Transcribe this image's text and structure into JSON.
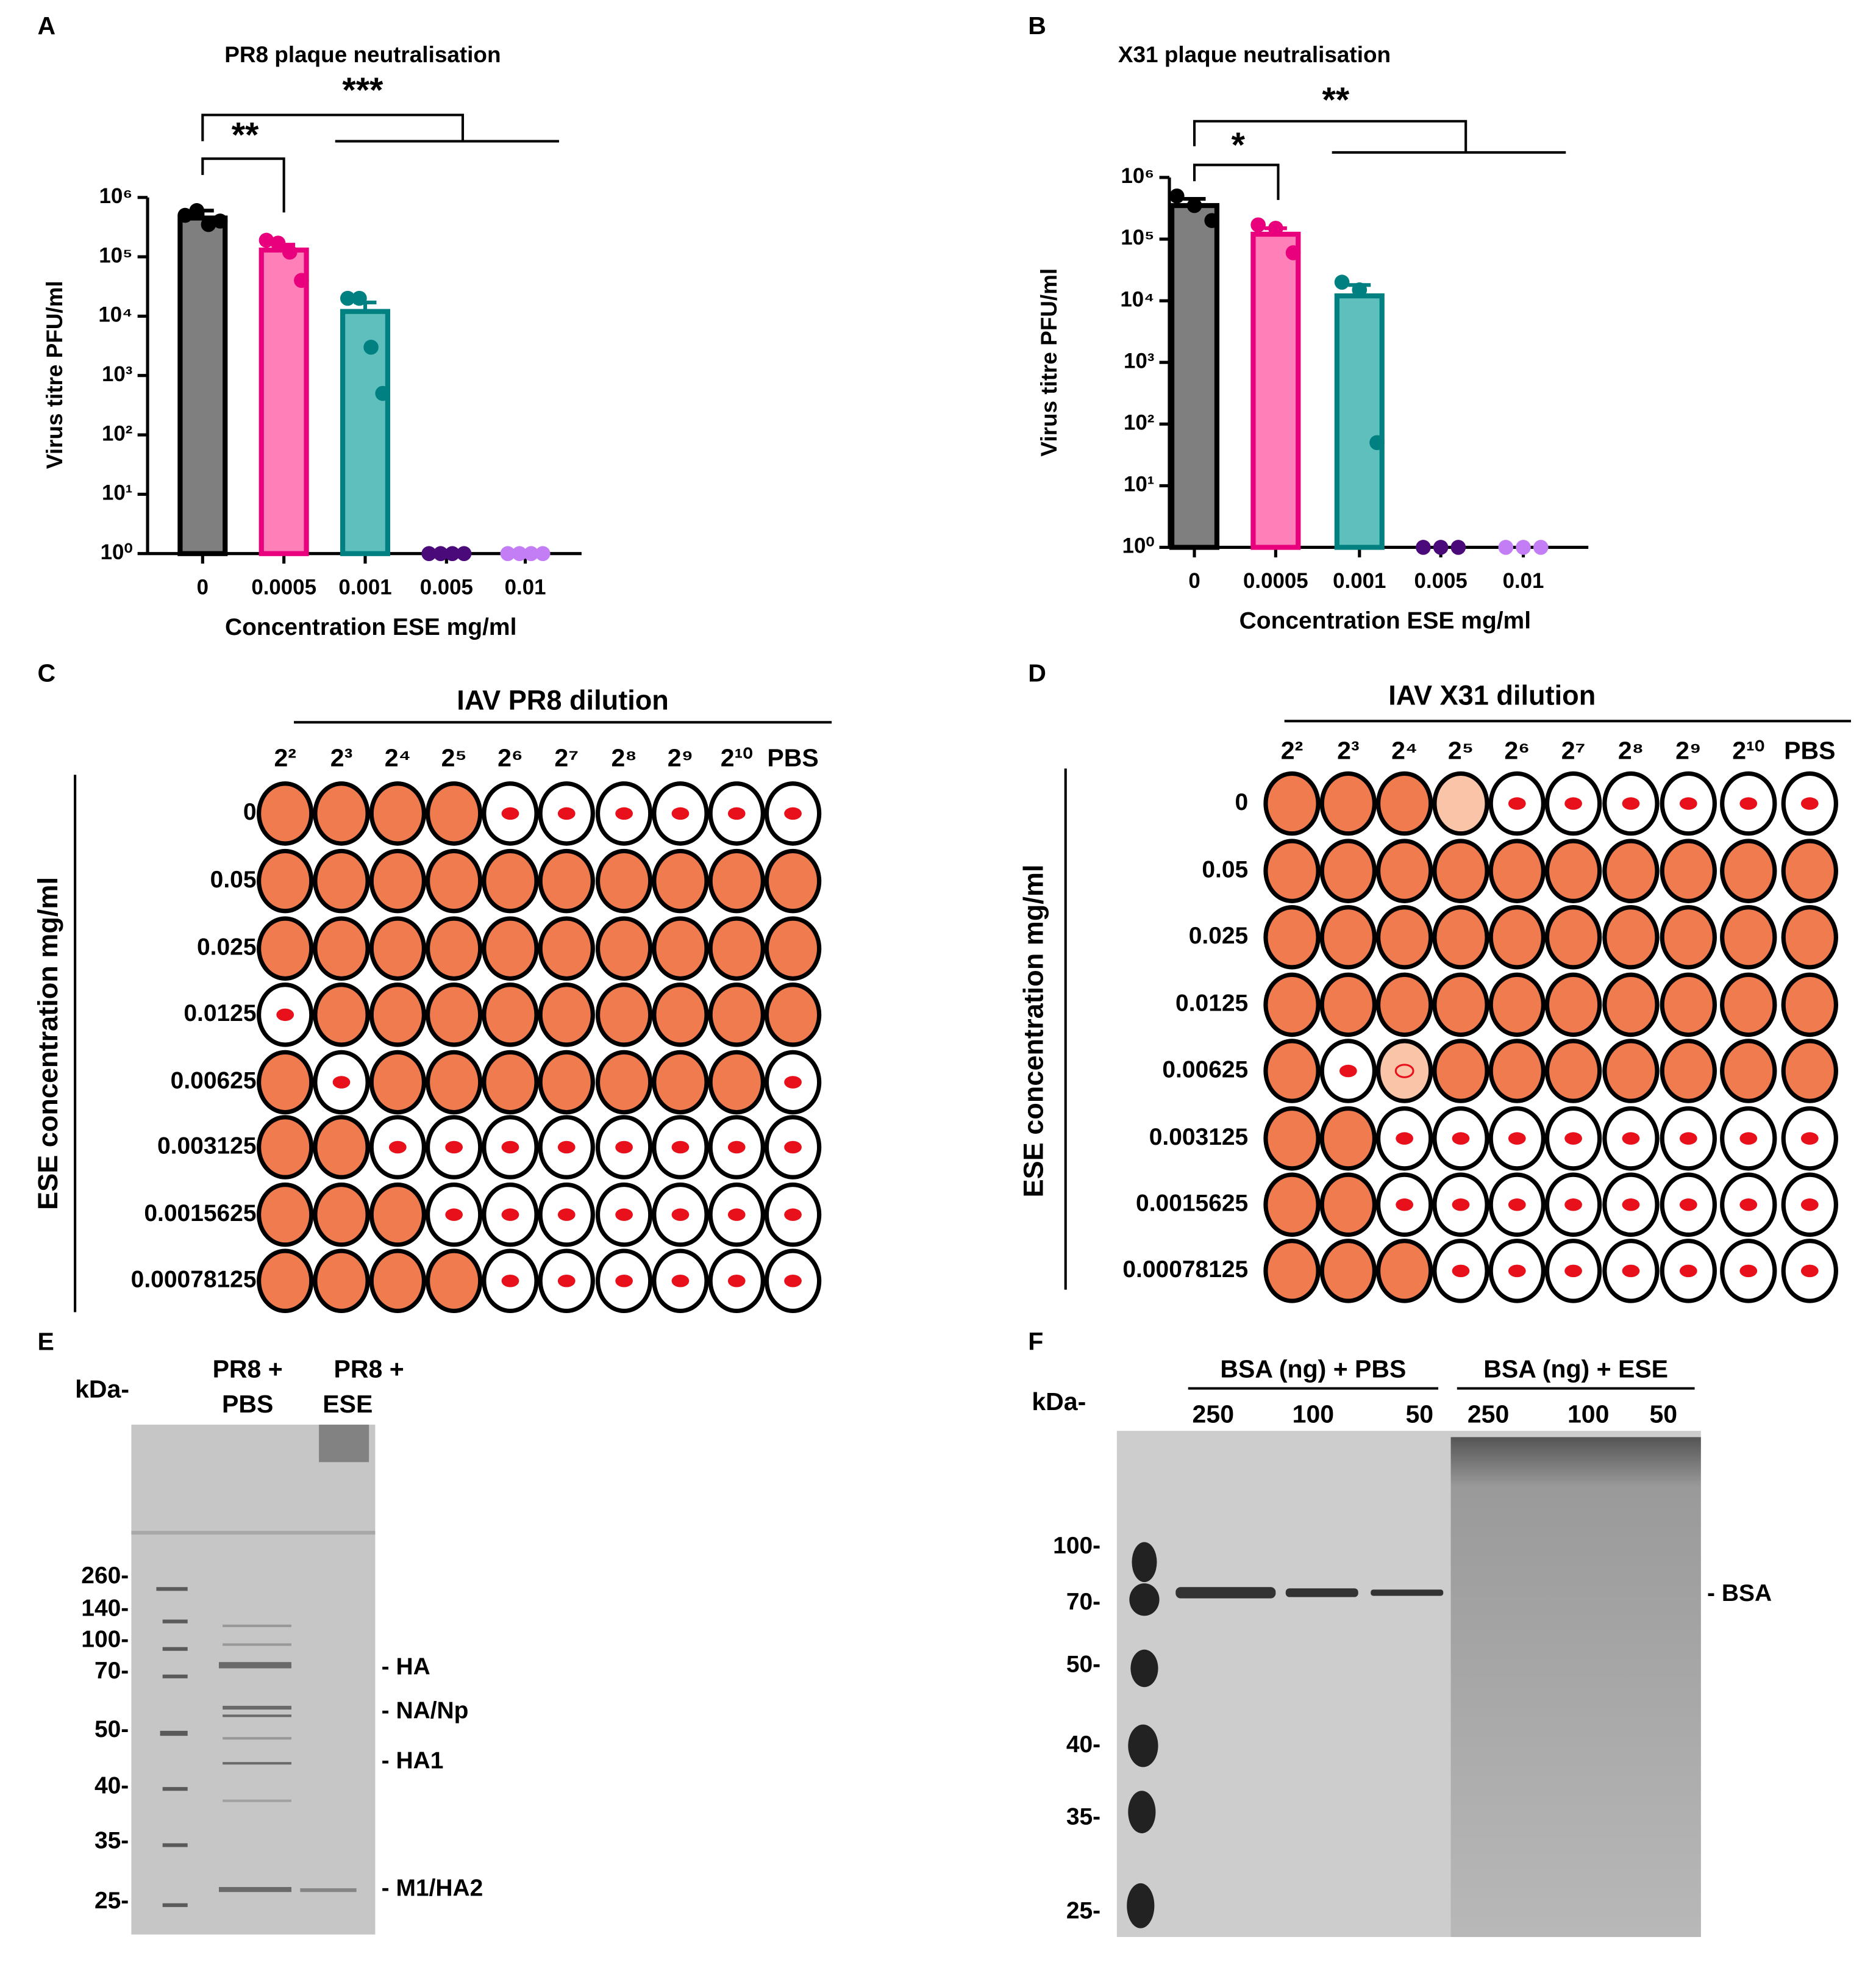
{
  "chart_data": [
    {
      "type": "bar",
      "panel": "A",
      "title": "PR8 plaque neutralisation",
      "x_label": "Concentration ESE mg/ml",
      "y_label": "Virus titre PFU/ml",
      "categories": [
        "0",
        "0.0005",
        "0.001",
        "0.005",
        "0.01"
      ],
      "values": [
        450000,
        130000,
        12000,
        1,
        1
      ],
      "errors": [
        150000,
        30000,
        5000,
        0,
        0
      ],
      "points": [
        [
          500000,
          600000,
          350000,
          400000
        ],
        [
          190000,
          170000,
          120000,
          40000
        ],
        [
          20000,
          20000,
          3000,
          500
        ],
        [
          1,
          1,
          1,
          1
        ],
        [
          1,
          1,
          1,
          1
        ]
      ],
      "bar_fill": [
        "#7f7f7f",
        "#ff7fb8",
        "#5fbfbd",
        "#4b0a7a",
        "#c47ef5"
      ],
      "bar_edge": [
        "#000000",
        "#e8007c",
        "#008080",
        "#4b0a7a",
        "#c47ef5"
      ],
      "log_scale": true,
      "ylim": [
        1,
        1000000
      ],
      "yticks": [
        {
          "value": 1,
          "label": "10⁰"
        },
        {
          "value": 10,
          "label": "10¹"
        },
        {
          "value": 100,
          "label": "10²"
        },
        {
          "value": 1000,
          "label": "10³"
        },
        {
          "value": 10000,
          "label": "10⁴"
        },
        {
          "value": 100000,
          "label": "10⁵"
        },
        {
          "value": 1000000,
          "label": "10⁶"
        }
      ],
      "annotations": [
        "**",
        "***"
      ]
    },
    {
      "type": "bar",
      "panel": "B",
      "title": "X31 plaque neutralisation",
      "x_label": "Concentration ESE mg/ml",
      "y_label": "Virus titre PFU/ml",
      "categories": [
        "0",
        "0.0005",
        "0.001",
        "0.005",
        "0.01"
      ],
      "values": [
        350000,
        120000,
        12000,
        1,
        1
      ],
      "errors": [
        100000,
        30000,
        6000,
        0,
        0
      ],
      "points": [
        [
          500000,
          350000,
          200000
        ],
        [
          170000,
          150000,
          60000
        ],
        [
          20000,
          15000,
          50
        ],
        [
          1,
          1,
          1
        ],
        [
          1,
          1,
          1
        ]
      ],
      "bar_fill": [
        "#7f7f7f",
        "#ff7fb8",
        "#5fbfbd",
        "#4b0a7a",
        "#c47ef5"
      ],
      "bar_edge": [
        "#000000",
        "#e8007c",
        "#008080",
        "#4b0a7a",
        "#c47ef5"
      ],
      "log_scale": true,
      "ylim": [
        1,
        1000000
      ],
      "yticks": [
        {
          "value": 1,
          "label": "10⁰"
        },
        {
          "value": 10,
          "label": "10¹"
        },
        {
          "value": 100,
          "label": "10²"
        },
        {
          "value": 1000,
          "label": "10³"
        },
        {
          "value": 10000,
          "label": "10⁴"
        },
        {
          "value": 100000,
          "label": "10⁵"
        },
        {
          "value": 1000000,
          "label": "10⁶"
        }
      ],
      "annotations": [
        "*",
        "**"
      ]
    }
  ],
  "hai": [
    {
      "panel": "C",
      "title": "IAV PR8 dilution",
      "row_label": "ESE concentration mg/ml",
      "columns": [
        "2²",
        "2³",
        "2⁴",
        "2⁵",
        "2⁶",
        "2⁷",
        "2⁸",
        "2⁹",
        "2¹⁰",
        "PBS"
      ],
      "rows": [
        "0",
        "0.05",
        "0.025",
        "0.0125",
        "0.00625",
        "0.003125",
        "0.0015625",
        "0.00078125"
      ],
      "cells": [
        [
          "full",
          "full",
          "full",
          "full",
          "dot",
          "dot",
          "dot",
          "dot",
          "dot",
          "dot"
        ],
        [
          "full",
          "full",
          "full",
          "full",
          "full",
          "full",
          "full",
          "full",
          "full",
          "full"
        ],
        [
          "full",
          "full",
          "full",
          "full",
          "full",
          "full",
          "full",
          "full",
          "full",
          "full"
        ],
        [
          "dot",
          "full",
          "full",
          "full",
          "full",
          "full",
          "full",
          "full",
          "full",
          "full"
        ],
        [
          "full",
          "dot",
          "full",
          "full",
          "full",
          "full",
          "full",
          "full",
          "full",
          "dot"
        ],
        [
          "full",
          "full",
          "dot",
          "dot",
          "dot",
          "dot",
          "dot",
          "dot",
          "dot",
          "dot"
        ],
        [
          "full",
          "full",
          "full",
          "dot",
          "dot",
          "dot",
          "dot",
          "dot",
          "dot",
          "dot"
        ],
        [
          "full",
          "full",
          "full",
          "full",
          "dot",
          "dot",
          "dot",
          "dot",
          "dot",
          "dot"
        ]
      ]
    },
    {
      "panel": "D",
      "title": "IAV X31 dilution",
      "row_label": "ESE concentration mg/ml",
      "columns": [
        "2²",
        "2³",
        "2⁴",
        "2⁵",
        "2⁶",
        "2⁷",
        "2⁸",
        "2⁹",
        "2¹⁰",
        "PBS"
      ],
      "rows": [
        "0",
        "0.05",
        "0.025",
        "0.0125",
        "0.00625",
        "0.003125",
        "0.0015625",
        "0.00078125"
      ],
      "cells": [
        [
          "full",
          "full",
          "full",
          "pale",
          "dot",
          "dot",
          "dot",
          "dot",
          "dot",
          "dot"
        ],
        [
          "full",
          "full",
          "full",
          "full",
          "full",
          "full",
          "full",
          "full",
          "full",
          "full"
        ],
        [
          "full",
          "full",
          "full",
          "full",
          "full",
          "full",
          "full",
          "full",
          "full",
          "full"
        ],
        [
          "full",
          "full",
          "full",
          "full",
          "full",
          "full",
          "full",
          "full",
          "full",
          "full"
        ],
        [
          "full",
          "dot",
          "ring",
          "full",
          "full",
          "full",
          "full",
          "full",
          "full",
          "full"
        ],
        [
          "full",
          "full",
          "dot",
          "dot",
          "dot",
          "dot",
          "dot",
          "dot",
          "dot",
          "dot"
        ],
        [
          "full",
          "full",
          "dot",
          "dot",
          "dot",
          "dot",
          "dot",
          "dot",
          "dot",
          "dot"
        ],
        [
          "full",
          "full",
          "full",
          "dot",
          "dot",
          "dot",
          "dot",
          "dot",
          "dot",
          "dot"
        ]
      ]
    }
  ],
  "gels": [
    {
      "panel": "E",
      "unit": "kDa-",
      "lanes": [
        [
          "PR8 +",
          "PBS"
        ],
        [
          "PR8 +",
          "ESE"
        ]
      ],
      "markers": [
        "260-",
        "140-",
        "100-",
        "70-",
        "50-",
        "40-",
        "35-",
        "25-"
      ],
      "bands": [
        "- HA",
        "- NA/Np",
        "- HA1",
        "- M1/HA2"
      ]
    },
    {
      "panel": "F",
      "unit": "kDa-",
      "groups": [
        "BSA (ng) + PBS",
        "BSA (ng) + ESE"
      ],
      "lanes": [
        "250",
        "100",
        "50",
        "250",
        "100",
        "50"
      ],
      "markers": [
        "100-",
        "70-",
        "50-",
        "40-",
        "35-",
        "25-"
      ],
      "bands": [
        "- BSA"
      ]
    }
  ]
}
